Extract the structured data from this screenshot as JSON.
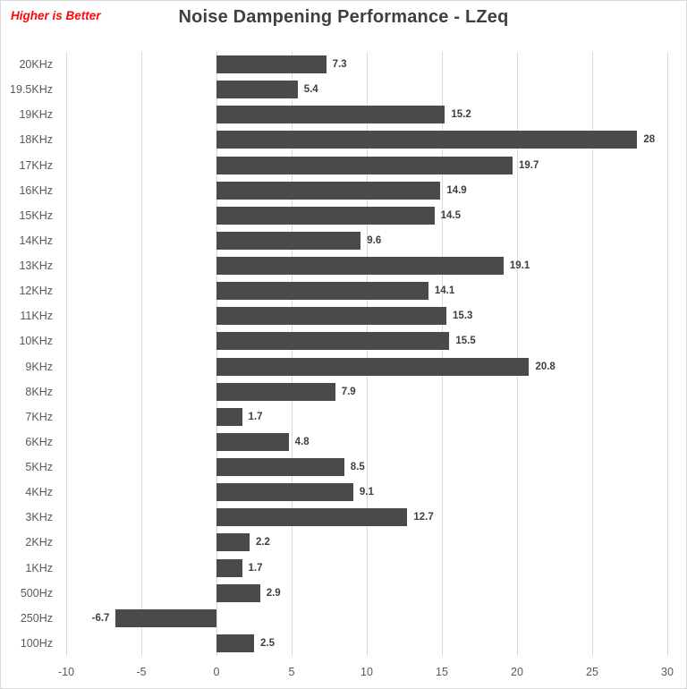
{
  "chart_data": {
    "type": "bar",
    "orientation": "horizontal",
    "title": "Noise Dampening Performance - LZeq",
    "annotation": "Higher is Better",
    "categories": [
      "20KHz",
      "19.5KHz",
      "19KHz",
      "18KHz",
      "17KHz",
      "16KHz",
      "15KHz",
      "14KHz",
      "13KHz",
      "12KHz",
      "11KHz",
      "10KHz",
      "9KHz",
      "8KHz",
      "7KHz",
      "6KHz",
      "5KHz",
      "4KHz",
      "3KHz",
      "2KHz",
      "1KHz",
      "500Hz",
      "250Hz",
      "100Hz"
    ],
    "values": [
      7.3,
      5.4,
      15.2,
      28,
      19.7,
      14.9,
      14.5,
      9.6,
      19.1,
      14.1,
      15.3,
      15.5,
      20.8,
      7.9,
      1.7,
      4.8,
      8.5,
      9.1,
      12.7,
      2.2,
      1.7,
      2.9,
      -6.7,
      2.5
    ],
    "data_labels": [
      "7.3",
      "5.4",
      "15.2",
      "28",
      "19.7",
      "14.9",
      "14.5",
      "9.6",
      "19.1",
      "14.1",
      "15.3",
      "15.5",
      "20.8",
      "7.9",
      "1.7",
      "4.8",
      "8.5",
      "9.1",
      "12.7",
      "2.2",
      "1.7",
      "2.9",
      "-6.7",
      "2.5"
    ],
    "xlim": [
      -10,
      30
    ],
    "xticks": [
      -10,
      -5,
      0,
      5,
      10,
      15,
      20,
      25,
      30
    ],
    "xtick_labels": [
      "-10",
      "-5",
      "0",
      "5",
      "10",
      "15",
      "20",
      "25",
      "30"
    ],
    "grid": true,
    "legend": false,
    "colors": {
      "bar": "#4a4a4a",
      "gridline": "#d9d9d9",
      "frame_border": "#d9d9d9",
      "title": "#404040",
      "annotation": "#fb0808",
      "axis_label": "#595959",
      "data_label": "#3f3f3f"
    }
  }
}
